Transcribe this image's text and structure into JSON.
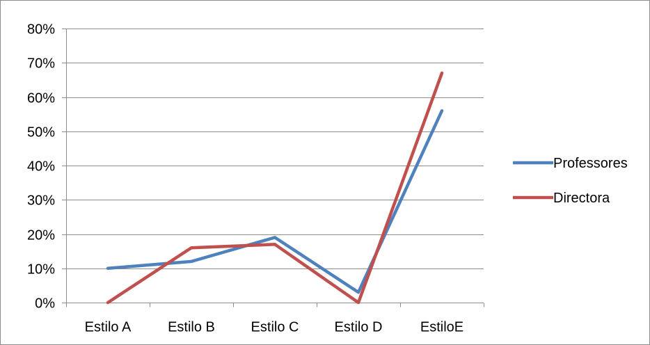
{
  "chart_data": {
    "type": "line",
    "categories": [
      "Estilo A",
      "Estilo B",
      "Estilo C",
      "Estilo D",
      "EstiloE"
    ],
    "series": [
      {
        "name": "Professores",
        "color": "#4f81bd",
        "values": [
          10,
          12,
          19,
          3,
          56
        ]
      },
      {
        "name": "Directora",
        "color": "#c0504d",
        "values": [
          0,
          16,
          17,
          0,
          67
        ]
      }
    ],
    "ylim": [
      0,
      80
    ],
    "yticks": [
      0,
      10,
      20,
      30,
      40,
      50,
      60,
      70,
      80
    ],
    "ytick_format": "percent",
    "grid": true,
    "legend_position": "right"
  }
}
